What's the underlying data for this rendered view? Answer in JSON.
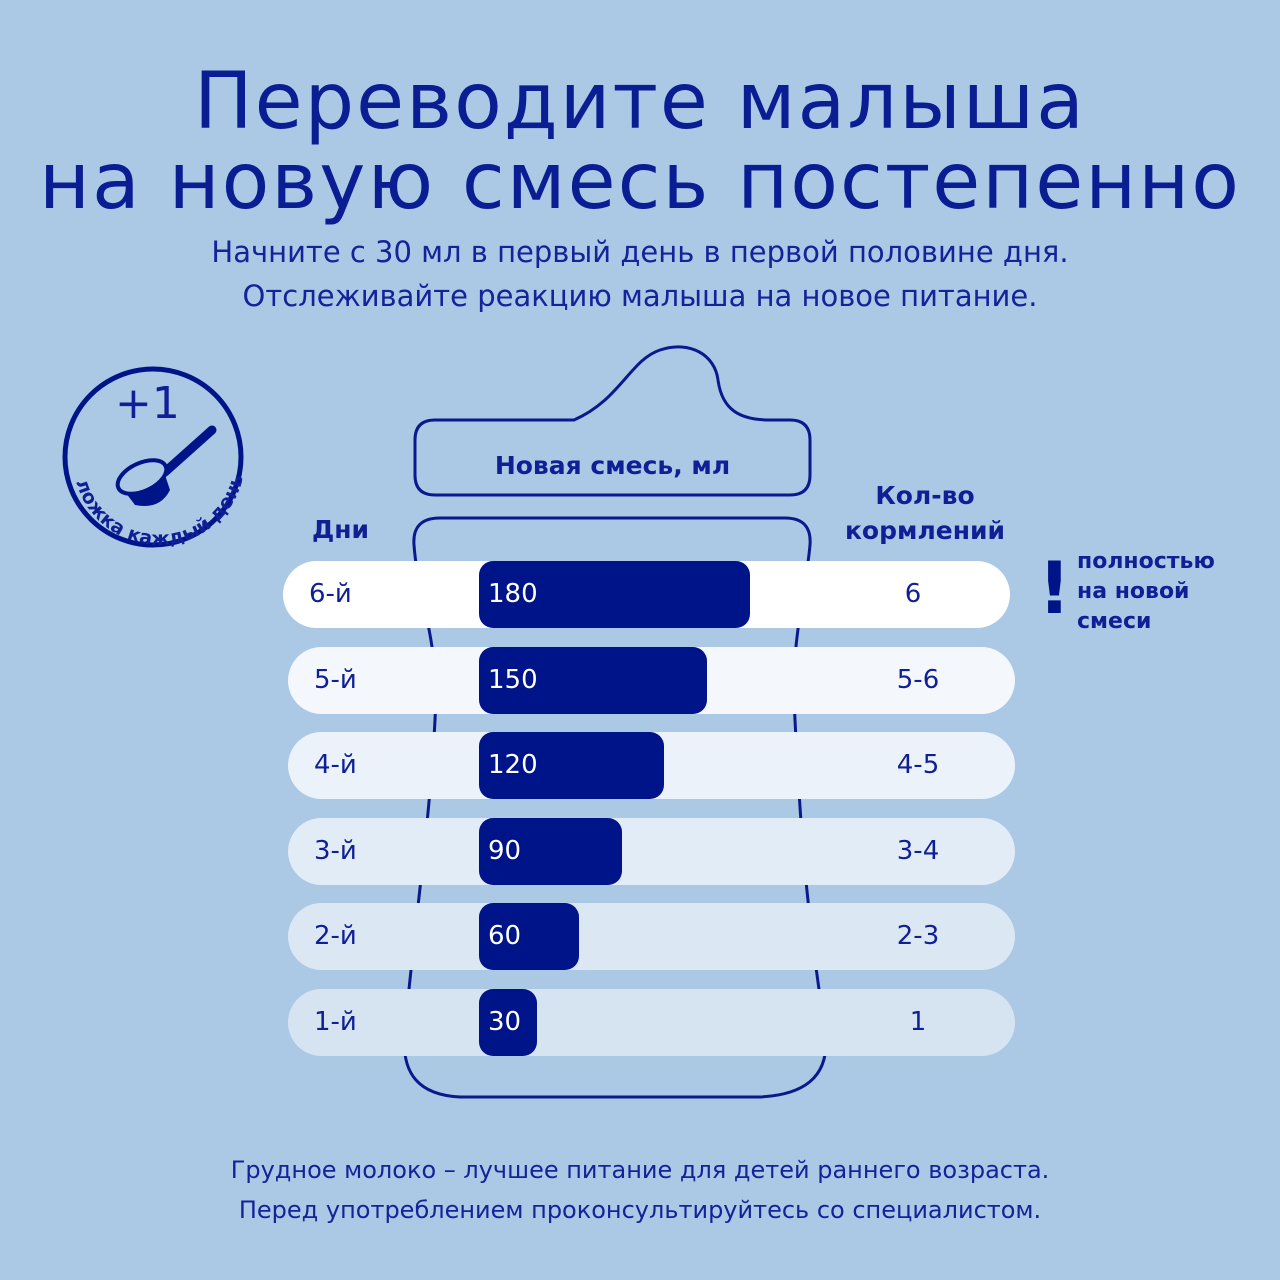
{
  "title_lines": [
    "Переводите малыша",
    "на новую смесь постепенно"
  ],
  "subtitle_lines": [
    "Начните с 30 мл в первый день в первой половине дня.",
    "Отслеживайте реакцию малыша на новое питание."
  ],
  "badge": {
    "big": "+1",
    "arc_text": "ложка каждый день",
    "icon": "measuring-scoop-icon"
  },
  "headers": {
    "days": "Дни",
    "new_formula": "Новая смесь, мл",
    "feedings_1": "Кол-во",
    "feedings_2": "кормлений"
  },
  "note": {
    "mark": "!",
    "lines": [
      "полностью",
      "на новой",
      "смеси"
    ]
  },
  "footer_lines": [
    "Грудное молоко – лучшее питание для детей раннего возраста.",
    "Перед употреблением проконсультируйтесь со специалистом."
  ],
  "colors": {
    "background": "#abc8e5",
    "accent": "#001489",
    "row_colors": [
      "#d6e4f2",
      "#dce7f4",
      "#e2ecf7",
      "#ebf2fa",
      "#f4f8fc",
      "#ffffff"
    ]
  },
  "chart_data": {
    "type": "bar",
    "orientation": "horizontal",
    "categories": [
      "1-й",
      "2-й",
      "3-й",
      "4-й",
      "5-й",
      "6-й"
    ],
    "values": [
      30,
      60,
      90,
      120,
      150,
      180
    ],
    "feedings": [
      "1",
      "2-3",
      "3-4",
      "4-5",
      "5-6",
      "6"
    ],
    "xlabel": "Новая смесь, мл",
    "ylabel": "Дни"
  }
}
